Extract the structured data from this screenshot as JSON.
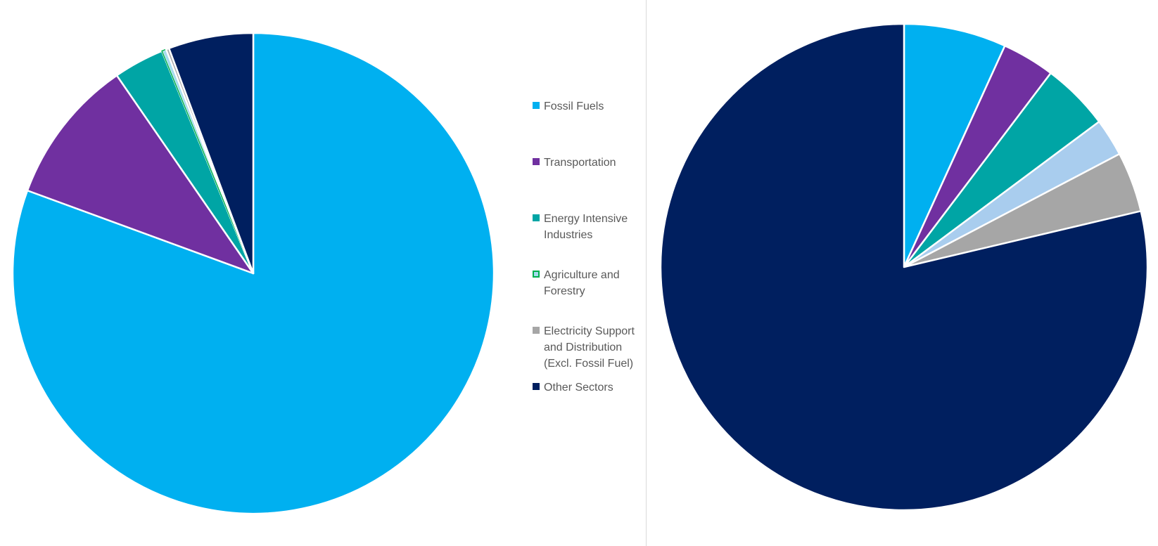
{
  "colors": {
    "fossil_fuels": "#00b0f0",
    "transportation": "#7030a0",
    "energy_intensive": "#00a5a5",
    "agriculture_forestry_fill": "#a6dcef",
    "agriculture_forestry_border": "#00b050",
    "electricity_support": "#a6a6a6",
    "other_sectors": "#001f5f",
    "light_blue": "#a9cdee",
    "divider": "#d9d9d9"
  },
  "legend": {
    "items": [
      {
        "label": "Fossil Fuels",
        "color": "#00b0f0",
        "icon": "square-swatch"
      },
      {
        "label": "Transportation",
        "color": "#7030a0",
        "icon": "square-swatch"
      },
      {
        "label": "Energy Intensive Industries",
        "color": "#00a5a5",
        "icon": "square-swatch"
      },
      {
        "label": "Agriculture and Forestry",
        "color": "#a6dcef",
        "border": "#00b050",
        "icon": "square-swatch"
      },
      {
        "label": "Electricity Support and Distribution (Excl. Fossil Fuel)",
        "color": "#a6a6a6",
        "icon": "square-swatch"
      },
      {
        "label": "Other Sectors",
        "color": "#001f5f",
        "icon": "square-swatch"
      }
    ]
  },
  "chart_data": [
    {
      "type": "pie",
      "title": "",
      "start_angle_deg": 0,
      "direction": "clockwise",
      "slices": [
        {
          "label": "Fossil Fuels",
          "value": 80.6,
          "color": "#00b0f0"
        },
        {
          "label": "Transportation",
          "value": 9.8,
          "color": "#7030a0"
        },
        {
          "label": "Energy Intensive Industries",
          "value": 3.4,
          "color": "#00a5a5"
        },
        {
          "label": "Agriculture and Forestry",
          "value": 0.3,
          "color": "#a6dcef",
          "border": "#00b050"
        },
        {
          "label": "Electricity Support and Distribution (Excl. Fossil Fuel)",
          "value": 0.2,
          "color": "#a6a6a6"
        },
        {
          "label": "Other Sectors",
          "value": 5.7,
          "color": "#001f5f"
        }
      ]
    },
    {
      "type": "pie",
      "title": "",
      "start_angle_deg": 0,
      "direction": "clockwise",
      "slices": [
        {
          "label": "Fossil Fuels",
          "value": 6.8,
          "color": "#00b0f0"
        },
        {
          "label": "Transportation",
          "value": 3.5,
          "color": "#7030a0"
        },
        {
          "label": "Energy Intensive Industries",
          "value": 4.5,
          "color": "#00a5a5"
        },
        {
          "label": "Agriculture and Forestry",
          "value": 2.5,
          "color": "#a9cdee"
        },
        {
          "label": "Electricity Support and Distribution (Excl. Fossil Fuel)",
          "value": 4.0,
          "color": "#a6a6a6"
        },
        {
          "label": "Other Sectors",
          "value": 78.7,
          "color": "#001f5f"
        }
      ]
    }
  ]
}
